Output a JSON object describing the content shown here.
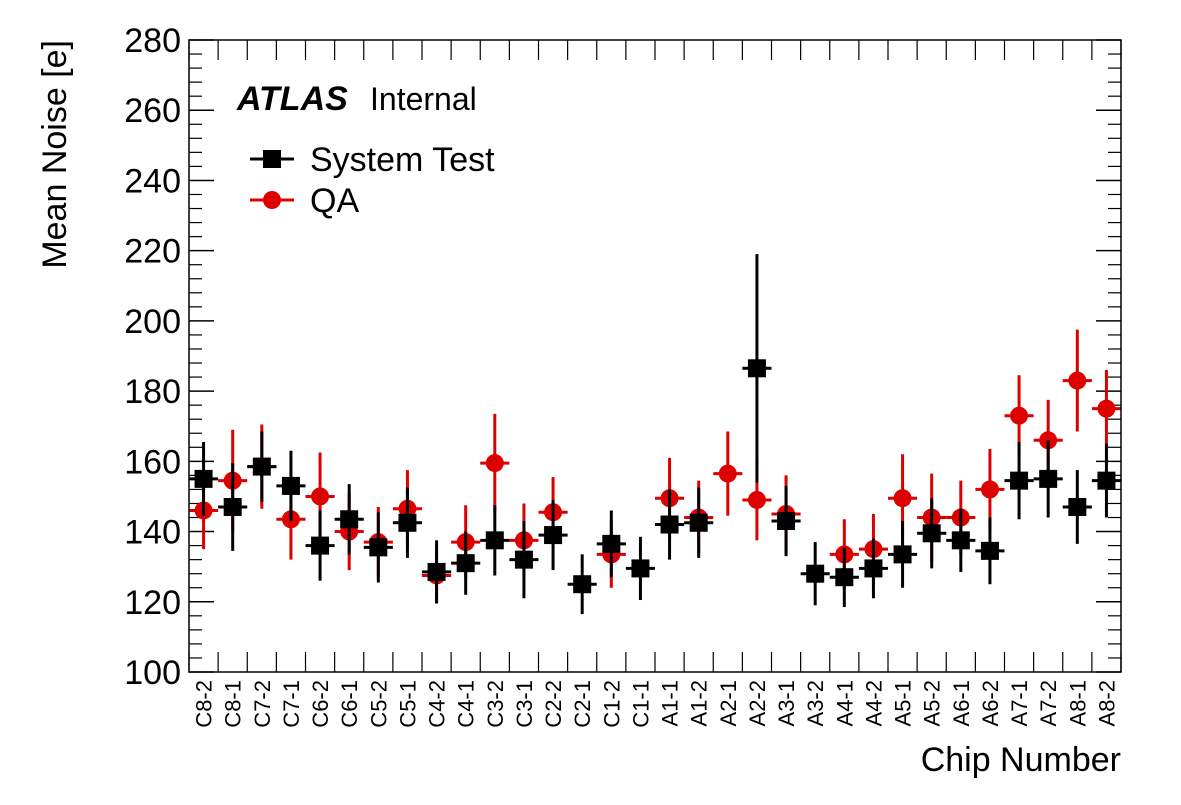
{
  "chart_data": {
    "type": "scatter",
    "atlas_label": "ATLAS",
    "atlas_suffix": "Internal",
    "xlabel": "Chip Number",
    "ylabel": "Mean Noise [e]",
    "ylim": [
      100,
      280
    ],
    "yticks": [
      100,
      120,
      140,
      160,
      180,
      200,
      220,
      240,
      260,
      280
    ],
    "legend_position": "top-left",
    "categories": [
      "C8-2",
      "C8-1",
      "C7-2",
      "C7-1",
      "C6-2",
      "C6-1",
      "C5-2",
      "C5-1",
      "C4-2",
      "C4-1",
      "C3-2",
      "C3-1",
      "C2-2",
      "C2-1",
      "C1-2",
      "C1-1",
      "A1-1",
      "A1-2",
      "A2-1",
      "A2-2",
      "A3-1",
      "A3-2",
      "A4-1",
      "A4-2",
      "A5-1",
      "A5-2",
      "A6-1",
      "A6-2",
      "A7-1",
      "A7-2",
      "A8-1",
      "A8-2"
    ],
    "series": [
      {
        "name": "System Test",
        "color": "#000000",
        "marker": "square",
        "values": [
          155,
          147,
          158.5,
          153,
          136,
          143.5,
          135.5,
          142.5,
          128.5,
          131,
          137.5,
          132,
          139,
          125,
          136.5,
          129.5,
          142,
          142.5,
          null,
          186.5,
          143,
          128,
          127,
          129.5,
          133.5,
          139.5,
          137.5,
          134.5,
          154.5,
          155,
          147,
          154.5
        ],
        "errors": [
          10.5,
          12.5,
          10,
          10,
          10,
          10,
          10,
          10,
          9,
          9,
          10,
          11,
          10,
          8.5,
          9.5,
          9,
          10,
          10,
          null,
          32.5,
          10,
          9,
          8.5,
          8.5,
          9.5,
          10,
          9,
          9.5,
          11,
          11,
          10.5,
          10.5
        ]
      },
      {
        "name": "QA",
        "color": "#dd0000",
        "marker": "circle",
        "values": [
          146,
          154.5,
          158.5,
          143.5,
          150,
          140,
          137,
          146.5,
          127.5,
          137,
          159.5,
          137.5,
          145.5,
          null,
          133.5,
          null,
          149.5,
          144,
          156.5,
          149,
          145,
          null,
          133.5,
          135,
          149.5,
          144,
          144,
          152,
          173,
          166,
          183,
          175
        ],
        "errors": [
          11,
          14.5,
          12,
          11.5,
          12.5,
          11,
          10,
          11,
          8,
          10.5,
          14,
          10.5,
          10,
          null,
          9.5,
          null,
          11.5,
          10.5,
          12,
          11.5,
          11,
          null,
          10,
          10,
          12.5,
          12.5,
          10.5,
          11.5,
          11.5,
          11.5,
          14.5,
          11
        ]
      }
    ]
  }
}
